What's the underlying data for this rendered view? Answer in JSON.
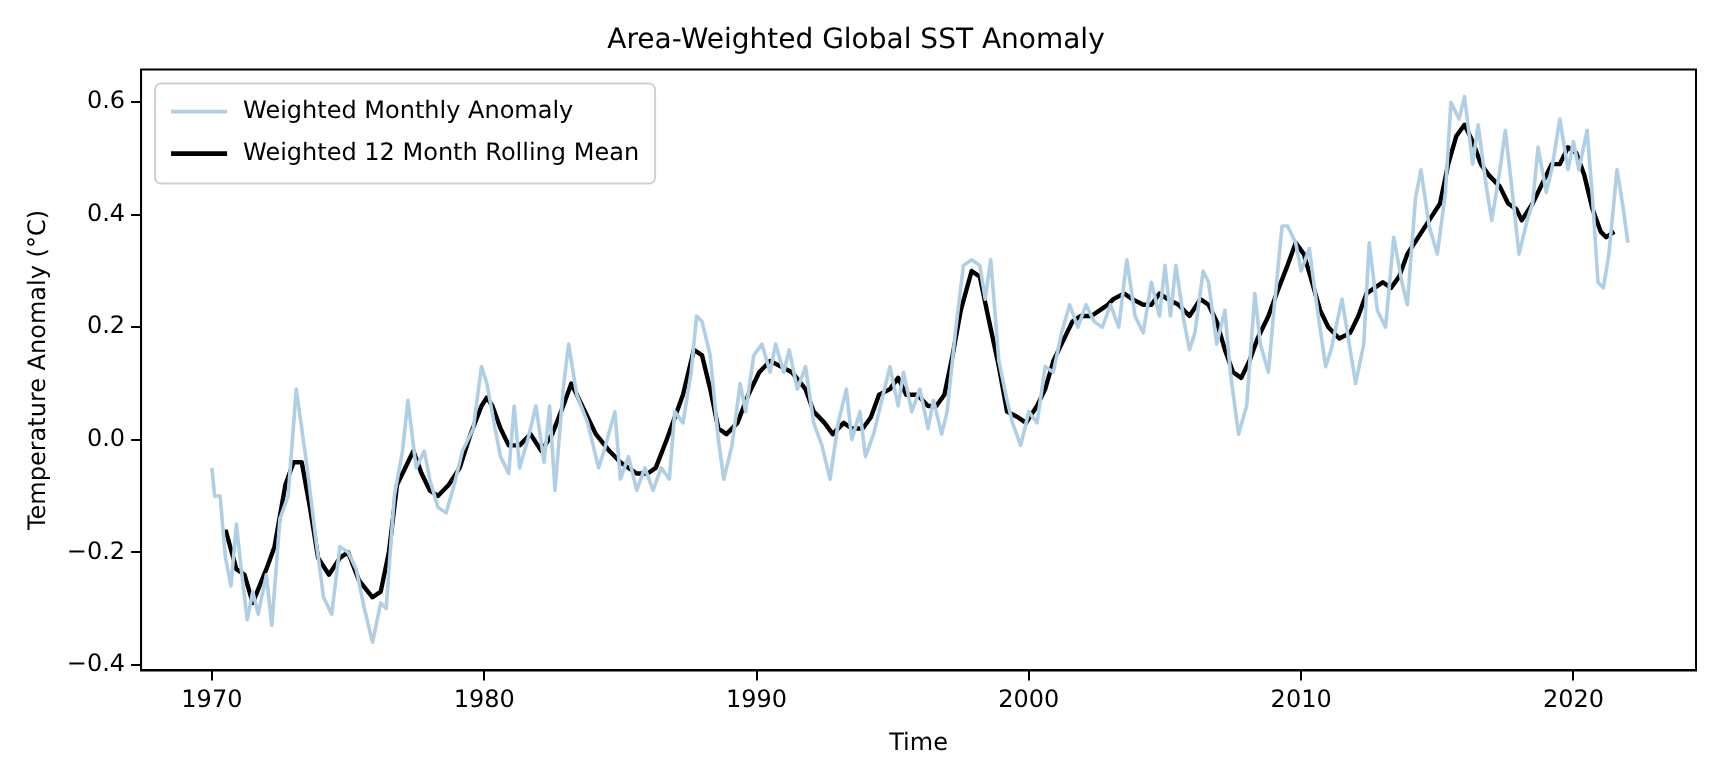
{
  "chart_data": {
    "type": "line",
    "title": "Area-Weighted Global SST Anomaly",
    "xlabel": "Time",
    "ylabel": "Temperature Anomaly (°C)",
    "legend": "top left",
    "marker": "none",
    "line_style": "solid",
    "xlim": [
      1967.4,
      2024.5
    ],
    "xticks": [
      1970,
      1980,
      1990,
      2000,
      2010,
      2020
    ],
    "ylim": [
      -0.41,
      0.658
    ],
    "yticks": [
      {
        "value": -0.4,
        "label": "−0.4"
      },
      {
        "value": -0.2,
        "label": "−0.2"
      },
      {
        "value": 0,
        "label": "0.0"
      },
      {
        "value": 0.2,
        "label": "0.2"
      },
      {
        "value": 0.4,
        "label": "0.4"
      },
      {
        "value": 0.6,
        "label": "0.6"
      }
    ],
    "series": [
      {
        "name": "Weighted Monthly Anomaly",
        "color": "#b0cfe5",
        "x": [
          1970.0,
          1970.1,
          1970.3,
          1970.5,
          1970.7,
          1970.9,
          1971.1,
          1971.3,
          1971.5,
          1971.7,
          1972.0,
          1972.2,
          1972.5,
          1972.8,
          1973.1,
          1973.5,
          1973.8,
          1974.1,
          1974.4,
          1974.7,
          1975.0,
          1975.3,
          1975.6,
          1975.9,
          1976.2,
          1976.4,
          1976.7,
          1977.0,
          1977.2,
          1977.5,
          1977.8,
          1978.0,
          1978.3,
          1978.6,
          1978.9,
          1979.2,
          1979.6,
          1979.9,
          1980.1,
          1980.4,
          1980.6,
          1980.9,
          1981.1,
          1981.3,
          1981.6,
          1981.9,
          1982.2,
          1982.4,
          1982.6,
          1982.9,
          1983.1,
          1983.4,
          1983.8,
          1984.2,
          1984.4,
          1984.8,
          1985.0,
          1985.3,
          1985.6,
          1985.9,
          1986.2,
          1986.5,
          1986.8,
          1987.0,
          1987.3,
          1987.6,
          1987.8,
          1988.0,
          1988.3,
          1988.6,
          1988.8,
          1989.1,
          1989.4,
          1989.6,
          1989.9,
          1990.2,
          1990.5,
          1990.7,
          1991.0,
          1991.2,
          1991.5,
          1991.8,
          1992.1,
          1992.4,
          1992.7,
          1993.0,
          1993.3,
          1993.5,
          1993.8,
          1994.0,
          1994.3,
          1994.6,
          1994.9,
          1995.2,
          1995.4,
          1995.7,
          1996.0,
          1996.3,
          1996.5,
          1996.8,
          1997.0,
          1997.3,
          1997.6,
          1997.9,
          1998.2,
          1998.4,
          1998.6,
          1998.9,
          1999.2,
          1999.4,
          1999.7,
          2000.0,
          2000.3,
          2000.6,
          2000.9,
          2001.2,
          2001.5,
          2001.8,
          2002.1,
          2002.4,
          2002.7,
          2003.0,
          2003.3,
          2003.6,
          2003.9,
          2004.2,
          2004.5,
          2004.8,
          2005.0,
          2005.2,
          2005.4,
          2005.7,
          2005.9,
          2006.1,
          2006.4,
          2006.6,
          2006.9,
          2007.2,
          2007.4,
          2007.7,
          2008.0,
          2008.3,
          2008.5,
          2008.8,
          2009.0,
          2009.3,
          2009.5,
          2009.8,
          2010.0,
          2010.3,
          2010.6,
          2010.9,
          2011.1,
          2011.5,
          2011.8,
          2012.0,
          2012.3,
          2012.5,
          2012.8,
          2013.1,
          2013.4,
          2013.7,
          2013.9,
          2014.2,
          2014.4,
          2014.7,
          2015.0,
          2015.3,
          2015.5,
          2015.8,
          2016.0,
          2016.3,
          2016.5,
          2016.8,
          2017.0,
          2017.3,
          2017.5,
          2017.8,
          2018.0,
          2018.3,
          2018.5,
          2018.7,
          2019.0,
          2019.2,
          2019.5,
          2019.8,
          2020.0,
          2020.2,
          2020.5,
          2020.7,
          2020.9,
          2021.1,
          2021.3,
          2021.6,
          2021.8,
          2022.0
        ],
        "values": [
          -0.05,
          -0.1,
          -0.1,
          -0.21,
          -0.26,
          -0.15,
          -0.24,
          -0.32,
          -0.27,
          -0.31,
          -0.24,
          -0.33,
          -0.14,
          -0.1,
          0.09,
          -0.05,
          -0.17,
          -0.28,
          -0.31,
          -0.19,
          -0.2,
          -0.23,
          -0.3,
          -0.36,
          -0.29,
          -0.3,
          -0.1,
          -0.02,
          0.07,
          -0.05,
          -0.02,
          -0.07,
          -0.12,
          -0.13,
          -0.08,
          -0.02,
          0.02,
          0.13,
          0.1,
          0.02,
          -0.03,
          -0.06,
          0.06,
          -0.05,
          0.0,
          0.06,
          -0.04,
          0.06,
          -0.09,
          0.09,
          0.17,
          0.08,
          0.03,
          -0.05,
          -0.02,
          0.05,
          -0.07,
          -0.03,
          -0.09,
          -0.05,
          -0.09,
          -0.05,
          -0.07,
          0.05,
          0.03,
          0.12,
          0.22,
          0.21,
          0.15,
          0.0,
          -0.07,
          -0.01,
          0.1,
          0.05,
          0.15,
          0.17,
          0.12,
          0.17,
          0.12,
          0.16,
          0.09,
          0.13,
          0.03,
          -0.01,
          -0.07,
          0.03,
          0.09,
          0.0,
          0.05,
          -0.03,
          0.01,
          0.07,
          0.13,
          0.06,
          0.12,
          0.05,
          0.09,
          0.02,
          0.07,
          0.01,
          0.05,
          0.19,
          0.31,
          0.32,
          0.31,
          0.25,
          0.32,
          0.14,
          0.07,
          0.03,
          -0.01,
          0.05,
          0.03,
          0.13,
          0.12,
          0.19,
          0.24,
          0.2,
          0.24,
          0.21,
          0.2,
          0.24,
          0.2,
          0.32,
          0.22,
          0.19,
          0.28,
          0.22,
          0.31,
          0.22,
          0.31,
          0.21,
          0.16,
          0.19,
          0.3,
          0.28,
          0.17,
          0.23,
          0.12,
          0.01,
          0.06,
          0.26,
          0.17,
          0.12,
          0.23,
          0.38,
          0.38,
          0.35,
          0.3,
          0.34,
          0.23,
          0.13,
          0.16,
          0.25,
          0.16,
          0.1,
          0.17,
          0.35,
          0.23,
          0.2,
          0.36,
          0.28,
          0.24,
          0.43,
          0.48,
          0.38,
          0.33,
          0.44,
          0.6,
          0.57,
          0.61,
          0.49,
          0.56,
          0.45,
          0.39,
          0.48,
          0.55,
          0.42,
          0.33,
          0.39,
          0.42,
          0.52,
          0.44,
          0.48,
          0.57,
          0.48,
          0.53,
          0.48,
          0.55,
          0.43,
          0.28,
          0.27,
          0.33,
          0.48,
          0.42,
          0.35
        ]
      },
      {
        "name": "Weighted 12 Month Rolling Mean",
        "color": "#000000",
        "x": [
          1970.5,
          1970.9,
          1971.2,
          1971.5,
          1972.0,
          1972.3,
          1972.7,
          1973.0,
          1973.3,
          1973.6,
          1973.9,
          1974.3,
          1974.7,
          1975.0,
          1975.4,
          1975.9,
          1976.2,
          1976.5,
          1976.8,
          1977.4,
          1977.7,
          1978.0,
          1978.3,
          1978.7,
          1979.1,
          1979.5,
          1979.9,
          1980.1,
          1980.3,
          1980.6,
          1980.9,
          1981.3,
          1981.7,
          1982.1,
          1982.5,
          1982.9,
          1983.2,
          1983.6,
          1984.1,
          1984.6,
          1985.0,
          1985.6,
          1986.0,
          1986.3,
          1986.7,
          1987.0,
          1987.3,
          1987.7,
          1988.0,
          1988.3,
          1988.6,
          1988.9,
          1989.3,
          1989.7,
          1990.1,
          1990.5,
          1990.9,
          1991.3,
          1991.8,
          1992.1,
          1992.5,
          1992.8,
          1993.2,
          1993.5,
          1993.9,
          1994.2,
          1994.5,
          1994.9,
          1995.2,
          1995.5,
          1995.9,
          1996.3,
          1996.6,
          1996.9,
          1997.2,
          1997.5,
          1997.9,
          1998.2,
          1998.5,
          1998.9,
          1999.2,
          1999.6,
          1999.9,
          2000.3,
          2000.6,
          2000.9,
          2001.2,
          2001.6,
          2001.9,
          2002.3,
          2002.6,
          2002.9,
          2003.1,
          2003.5,
          2003.8,
          2004.2,
          2004.5,
          2004.8,
          2005.1,
          2005.5,
          2005.9,
          2006.3,
          2006.6,
          2006.9,
          2007.2,
          2007.5,
          2007.8,
          2008.1,
          2008.4,
          2008.8,
          2009.1,
          2009.5,
          2009.8,
          2010.1,
          2010.4,
          2010.7,
          2011.0,
          2011.4,
          2011.8,
          2012.1,
          2012.4,
          2012.7,
          2013.0,
          2013.3,
          2013.6,
          2013.9,
          2014.3,
          2014.7,
          2015.1,
          2015.4,
          2015.7,
          2016.0,
          2016.3,
          2016.6,
          2016.9,
          2017.3,
          2017.6,
          2017.9,
          2018.1,
          2018.5,
          2018.8,
          2019.2,
          2019.5,
          2019.8,
          2020.1,
          2020.4,
          2020.7,
          2021.0,
          2021.2,
          2021.5
        ],
        "values": [
          -0.16,
          -0.23,
          -0.24,
          -0.29,
          -0.23,
          -0.19,
          -0.08,
          -0.04,
          -0.04,
          -0.12,
          -0.21,
          -0.24,
          -0.21,
          -0.2,
          -0.25,
          -0.28,
          -0.27,
          -0.2,
          -0.08,
          -0.02,
          -0.06,
          -0.09,
          -0.1,
          -0.08,
          -0.05,
          0.01,
          0.06,
          0.075,
          0.06,
          0.02,
          -0.01,
          -0.01,
          0.01,
          -0.02,
          0.01,
          0.06,
          0.1,
          0.06,
          0.01,
          -0.02,
          -0.04,
          -0.06,
          -0.06,
          -0.05,
          0.0,
          0.04,
          0.08,
          0.16,
          0.15,
          0.09,
          0.02,
          0.01,
          0.03,
          0.08,
          0.12,
          0.14,
          0.13,
          0.12,
          0.09,
          0.05,
          0.03,
          0.01,
          0.03,
          0.02,
          0.02,
          0.04,
          0.08,
          0.09,
          0.11,
          0.08,
          0.08,
          0.06,
          0.06,
          0.08,
          0.15,
          0.23,
          0.3,
          0.29,
          0.22,
          0.13,
          0.05,
          0.04,
          0.03,
          0.06,
          0.09,
          0.14,
          0.17,
          0.21,
          0.22,
          0.22,
          0.23,
          0.24,
          0.25,
          0.26,
          0.25,
          0.24,
          0.24,
          0.26,
          0.25,
          0.24,
          0.22,
          0.25,
          0.24,
          0.21,
          0.16,
          0.12,
          0.11,
          0.14,
          0.18,
          0.22,
          0.26,
          0.31,
          0.35,
          0.33,
          0.28,
          0.23,
          0.2,
          0.18,
          0.19,
          0.22,
          0.26,
          0.27,
          0.28,
          0.27,
          0.29,
          0.33,
          0.36,
          0.39,
          0.42,
          0.49,
          0.54,
          0.56,
          0.53,
          0.49,
          0.47,
          0.45,
          0.42,
          0.41,
          0.39,
          0.42,
          0.45,
          0.49,
          0.49,
          0.52,
          0.51,
          0.47,
          0.41,
          0.37,
          0.36,
          0.37
        ]
      }
    ]
  }
}
